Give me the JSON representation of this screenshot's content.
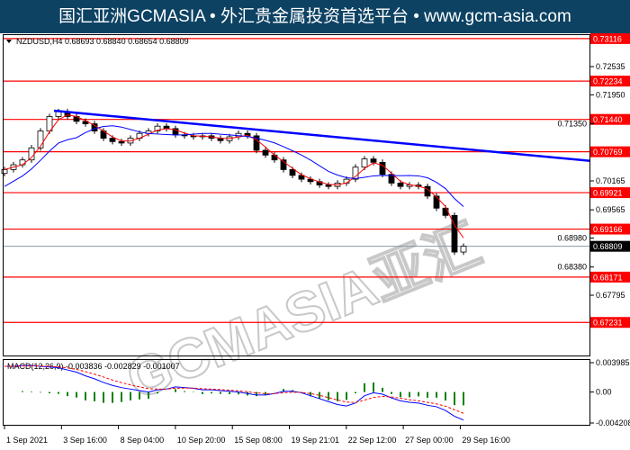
{
  "banner": {
    "text": "国汇亚洲GCMASIA • 外汇贵金属投资首选平台 • www.gcm-asia.com",
    "background": "#0d4263"
  },
  "watermark": {
    "text": "GCMASIA亚汇",
    "subtext": "GLOBAL CAPITAL MARKETS"
  },
  "chart_data": {
    "type": "candlestick",
    "symbol_header": "NZDUSD,H4  0.68693 0.68840 0.68654 0.68809",
    "symbol": "NZDUSD",
    "timeframe": "H4",
    "ohlc_last": {
      "open": 0.68693,
      "high": 0.6884,
      "low": 0.68654,
      "close": 0.68809
    },
    "current_price": 0.68809,
    "y_ticks": [
      0.72535,
      0.7195,
      0.7135,
      0.70165,
      0.69565,
      0.6898,
      0.6838,
      0.67795
    ],
    "levels": [
      0.73116,
      0.72234,
      0.7144,
      0.70769,
      0.69921,
      0.69166,
      0.68171,
      0.67231
    ],
    "level_color": "#ff0000",
    "trendline": {
      "from": 0.7162,
      "to": 0.7058,
      "color": "#0000ff"
    },
    "x_labels": [
      "1 Sep 2021",
      "3 Sep 16:00",
      "8 Sep 04:00",
      "10 Sep 20:00",
      "15 Sep 08:00",
      "19 Sep 21:01",
      "22 Sep 12:00",
      "27 Sep 00:00",
      "29 Sep 16:00"
    ],
    "closes": [
      0.704,
      0.705,
      0.706,
      0.7085,
      0.712,
      0.715,
      0.716,
      0.715,
      0.714,
      0.7135,
      0.712,
      0.7105,
      0.7098,
      0.7095,
      0.7105,
      0.7115,
      0.712,
      0.713,
      0.7125,
      0.7112,
      0.711,
      0.7108,
      0.711,
      0.7105,
      0.71,
      0.7108,
      0.7115,
      0.711,
      0.708,
      0.707,
      0.706,
      0.704,
      0.7028,
      0.702,
      0.7015,
      0.7008,
      0.7005,
      0.7012,
      0.702,
      0.7045,
      0.7062,
      0.7055,
      0.703,
      0.7012,
      0.7005,
      0.7008,
      0.7005,
      0.6985,
      0.696,
      0.6945,
      0.6869,
      0.68809
    ],
    "ma_colors": {
      "fast": "#ff0000",
      "slow": "#0000ff"
    },
    "macd": {
      "label": "MACD(12,26,9) -0.003836 -0.002829 -0.001007",
      "y_ticks": [
        0.003985,
        0.0,
        -0.004208
      ],
      "ylim": [
        -0.004208,
        0.003985
      ],
      "main": [
        0.0035,
        0.0035,
        0.0036,
        0.0036,
        0.0035,
        0.0034,
        0.0033,
        0.003,
        0.0027,
        0.0022,
        0.0018,
        0.0013,
        0.0009,
        0.0006,
        0.0004,
        0.0002,
        0.0,
        0.0003,
        0.0004,
        0.0007,
        0.0006,
        0.0005,
        0.0003,
        0.0003,
        0.0002,
        0.0001,
        0.0,
        -0.0002,
        -0.0004,
        -0.0004,
        -0.0002,
        0.0001,
        0.0001,
        -0.0001,
        -0.0005,
        -0.0009,
        -0.0013,
        -0.0017,
        -0.0019,
        -0.0015,
        -0.0005,
        -0.0001,
        -0.0003,
        -0.0008,
        -0.0012,
        -0.0014,
        -0.0015,
        -0.0018,
        -0.002,
        -0.0025,
        -0.0033,
        -0.0038
      ],
      "colors": {
        "main": "#0000ff",
        "signal": "#ff0000",
        "histogram": "#008000"
      }
    }
  }
}
